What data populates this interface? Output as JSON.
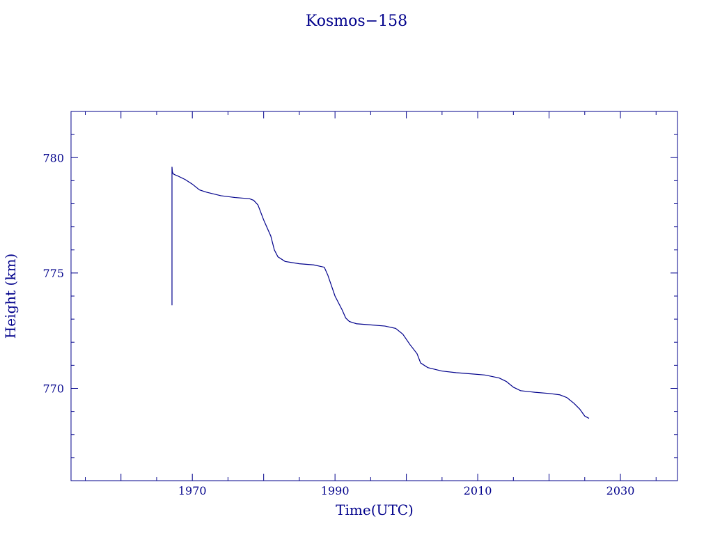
{
  "chart_data": {
    "type": "line",
    "title": "Kosmos−158",
    "xlabel": "Time(UTC)",
    "ylabel": "Height (km)",
    "xlim": [
      1953,
      2038
    ],
    "ylim": [
      766,
      782
    ],
    "xticks": [
      1970,
      1990,
      2010,
      2030
    ],
    "xtick_labels": [
      "1970",
      "1990",
      "2010",
      "2030"
    ],
    "yticks": [
      770,
      775,
      780
    ],
    "ytick_labels": [
      "770",
      "775",
      "780"
    ],
    "grid": false,
    "color": "#00008b",
    "series": [
      {
        "x": [
          1967.15,
          1967.15,
          1967.2,
          1967.3,
          1967.6,
          1968.0,
          1969.0,
          1970.0,
          1971.0,
          1972.0,
          1974.0,
          1976.0,
          1978.0,
          1978.6,
          1979.2,
          1980.0,
          1981.0,
          1981.5,
          1982.0,
          1983.0,
          1985.0,
          1987.0,
          1988.5,
          1989.0,
          1990.0,
          1991.0,
          1991.5,
          1992.0,
          1993.0,
          1995.0,
          1997.0,
          1998.5,
          1999.5,
          2000.5,
          2001.5,
          2002.0,
          2003.0,
          2005.0,
          2007.0,
          2009.0,
          2011.0,
          2013.0,
          2014.0,
          2015.0,
          2016.0,
          2018.0,
          2020.0,
          2021.5,
          2022.5,
          2023.5,
          2024.3,
          2025.0,
          2025.6
        ],
        "y": [
          773.6,
          779.6,
          779.4,
          779.3,
          779.25,
          779.2,
          779.05,
          778.85,
          778.6,
          778.5,
          778.35,
          778.27,
          778.22,
          778.15,
          777.95,
          777.3,
          776.6,
          776.0,
          775.7,
          775.5,
          775.4,
          775.35,
          775.25,
          774.9,
          774.0,
          773.4,
          773.05,
          772.9,
          772.8,
          772.75,
          772.7,
          772.6,
          772.35,
          771.9,
          771.5,
          771.1,
          770.9,
          770.75,
          770.68,
          770.63,
          770.58,
          770.45,
          770.3,
          770.05,
          769.9,
          769.83,
          769.78,
          769.72,
          769.6,
          769.35,
          769.1,
          768.8,
          768.7
        ]
      }
    ]
  }
}
